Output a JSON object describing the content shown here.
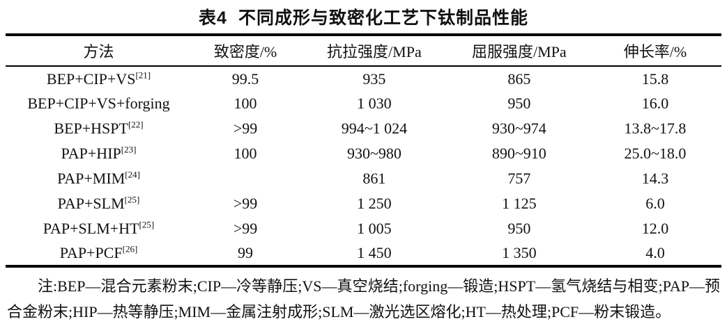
{
  "title": {
    "label": "表4",
    "text": "不同成形与致密化工艺下钛制品性能"
  },
  "table": {
    "columns": [
      "方法",
      "致密度/%",
      "抗拉强度/MPa",
      "屈服强度/MPa",
      "伸长率/%"
    ],
    "rows": [
      {
        "method": "BEP+CIP+VS",
        "ref": "[21]",
        "density": "99.5",
        "tensile": "935",
        "yield": "865",
        "elongation": "15.8"
      },
      {
        "method": "BEP+CIP+VS+forging",
        "ref": "",
        "density": "100",
        "tensile": "1 030",
        "yield": "950",
        "elongation": "16.0"
      },
      {
        "method": "BEP+HSPT",
        "ref": "[22]",
        "density": ">99",
        "tensile": "994~1 024",
        "yield": "930~974",
        "elongation": "13.8~17.8"
      },
      {
        "method": "PAP+HIP",
        "ref": "[23]",
        "density": "100",
        "tensile": "930~980",
        "yield": "890~910",
        "elongation": "25.0~18.0"
      },
      {
        "method": "PAP+MIM",
        "ref": "[24]",
        "density": "",
        "tensile": "861",
        "yield": "757",
        "elongation": "14.3"
      },
      {
        "method": "PAP+SLM",
        "ref": "[25]",
        "density": ">99",
        "tensile": "1 250",
        "yield": "1 125",
        "elongation": "6.0"
      },
      {
        "method": "PAP+SLM+HT",
        "ref": "[25]",
        "density": ">99",
        "tensile": "1 005",
        "yield": "950",
        "elongation": "12.0"
      },
      {
        "method": "PAP+PCF",
        "ref": "[26]",
        "density": "99",
        "tensile": "1 450",
        "yield": "1 350",
        "elongation": "4.0"
      }
    ]
  },
  "footnote": "注:BEP—混合元素粉末;CIP—冷等静压;VS—真空烧结;forging—锻造;HSPT—氢气烧结与相变;PAP—预合金粉末;HIP—热等静压;MIM—金属注射成形;SLM—激光选区熔化;HT—热处理;PCF—粉末锻造。",
  "colors": {
    "text": "#111111",
    "background": "#ffffff",
    "rule": "#000000"
  }
}
